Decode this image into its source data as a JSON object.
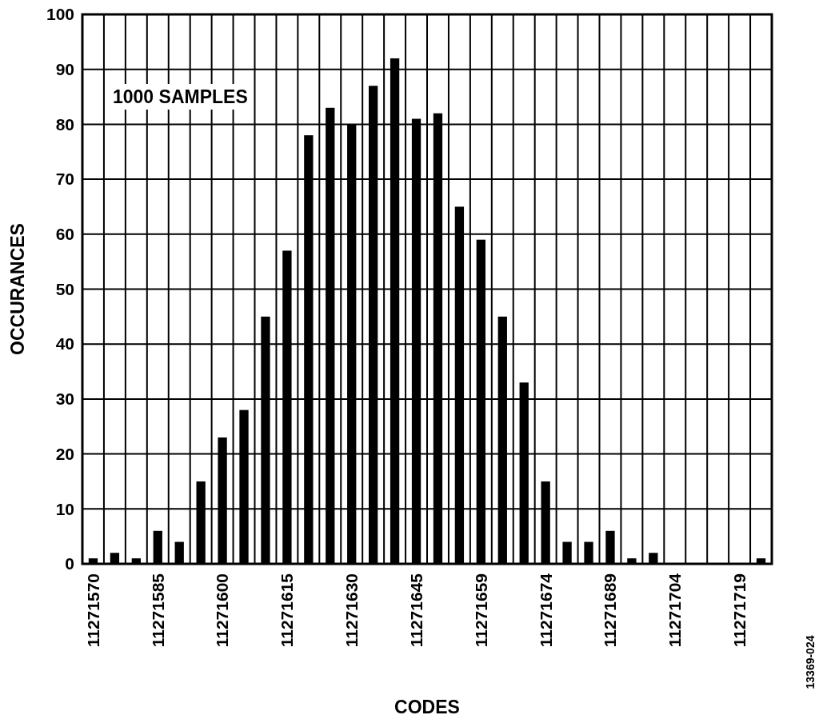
{
  "chart_data": {
    "type": "bar",
    "xlabel": "CODES",
    "ylabel": "OCCURANCES",
    "categories": [
      "11271570",
      null,
      null,
      "11271585",
      null,
      null,
      "11271600",
      null,
      null,
      "11271615",
      null,
      null,
      "11271630",
      null,
      null,
      "11271645",
      null,
      null,
      "11271659",
      null,
      null,
      "11271674",
      null,
      null,
      "11271689",
      null,
      null,
      "11271704",
      null,
      null,
      "11271719",
      null
    ],
    "values": [
      1,
      2,
      1,
      6,
      4,
      15,
      23,
      28,
      45,
      57,
      78,
      83,
      80,
      87,
      92,
      81,
      82,
      65,
      59,
      45,
      33,
      15,
      4,
      4,
      6,
      1,
      2,
      0,
      0,
      0,
      0,
      1
    ],
    "color": "#000000",
    "ylim": [
      0,
      100
    ],
    "yticks": [
      0,
      10,
      20,
      30,
      40,
      50,
      60,
      70,
      80,
      90,
      100
    ],
    "grid": true,
    "annotations": [
      "1000 SAMPLES",
      "13369-024"
    ]
  }
}
